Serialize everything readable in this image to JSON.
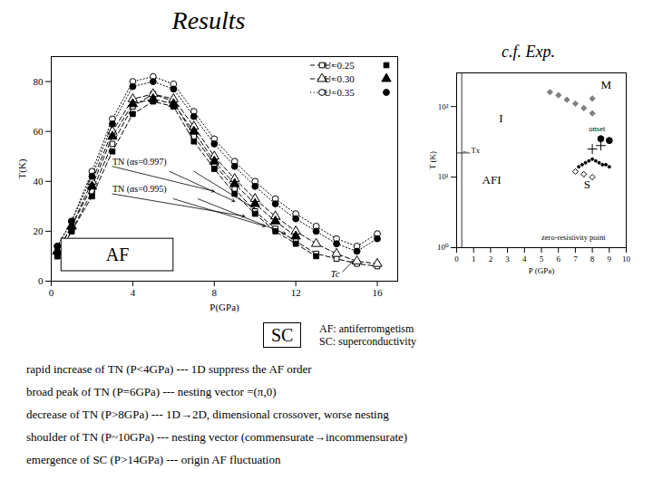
{
  "chart_data": [
    {
      "type": "line",
      "title": "Results",
      "xlabel": "P(GPa)",
      "ylabel": "T(K)",
      "xlim": [
        0,
        17
      ],
      "ylim": [
        0,
        90
      ],
      "xticks": [
        0,
        4,
        8,
        12,
        16
      ],
      "yticks": [
        0,
        20,
        40,
        60,
        80
      ],
      "grid": false,
      "legend": "upper right",
      "series": [
        {
          "name": "U=0.25",
          "marker": "square_open",
          "line_style": "dashed",
          "color": "#000000",
          "x": [
            0.3,
            1,
            2,
            3,
            4,
            5,
            6,
            7,
            8,
            9,
            10,
            11,
            12,
            13,
            14,
            15,
            16
          ],
          "values": [
            10,
            20,
            36,
            55,
            70,
            75,
            72,
            58,
            47,
            37,
            28,
            21,
            16,
            11,
            9,
            7,
            6
          ]
        },
        {
          "marker": "square",
          "line_style": "dashed",
          "color": "#000000",
          "x": [
            0.3,
            1,
            2,
            3,
            4,
            5,
            6,
            7,
            8,
            9,
            10,
            11,
            12,
            13
          ],
          "values": [
            10,
            20,
            34,
            52,
            67,
            72,
            70,
            56,
            45,
            35,
            27,
            20,
            15,
            10
          ]
        },
        {
          "name": "U=0.30",
          "marker": "triangle_open",
          "line_style": "dashed",
          "color": "#000000",
          "x": [
            0.3,
            1,
            2,
            3,
            4,
            5,
            6,
            7,
            8,
            9,
            10,
            11,
            12,
            13,
            14,
            15,
            16
          ],
          "values": [
            12,
            22,
            40,
            60,
            73,
            75,
            73,
            62,
            50,
            41,
            33,
            26,
            20,
            15,
            11,
            8,
            7
          ]
        },
        {
          "marker": "triangle",
          "line_style": "dashed",
          "color": "#000000",
          "x": [
            0.3,
            1,
            2,
            3,
            4,
            5,
            6,
            7,
            8,
            9,
            10,
            11,
            12
          ],
          "values": [
            12,
            22,
            38,
            58,
            71,
            73,
            71,
            60,
            48,
            39,
            31,
            24,
            18
          ]
        },
        {
          "name": "U=0.35",
          "marker": "circle_open",
          "line_style": "dotted",
          "color": "#000000",
          "x": [
            0.3,
            1,
            2,
            3,
            4,
            5,
            6,
            7,
            8,
            9,
            10,
            11,
            12,
            13,
            14,
            15,
            16
          ],
          "values": [
            14,
            24,
            44,
            65,
            80,
            82,
            79,
            68,
            57,
            48,
            40,
            33,
            27,
            22,
            17,
            14,
            19
          ]
        },
        {
          "marker": "circle",
          "line_style": "dotted",
          "color": "#000000",
          "x": [
            0.3,
            1,
            2,
            3,
            4,
            5,
            6,
            7,
            8,
            9,
            10,
            11,
            12,
            13,
            14,
            15,
            16
          ],
          "values": [
            14,
            24,
            42,
            63,
            78,
            80,
            77,
            66,
            55,
            46,
            38,
            31,
            25,
            20,
            15,
            12,
            17
          ]
        }
      ],
      "annotations": [
        {
          "text": "TN (αs=0.997)",
          "xy": [
            8.0,
            36
          ],
          "xytext": [
            3.0,
            46
          ]
        },
        {
          "text": "TN (αs=0.995)",
          "xy": [
            9.5,
            26
          ],
          "xytext": [
            3.0,
            35
          ]
        },
        {
          "text": "Tc",
          "xy": [
            14.8,
            8
          ],
          "xytext": [
            14.2,
            3
          ]
        }
      ],
      "arrows": [
        {
          "xy": [
            9.0,
            32
          ],
          "xytext": [
            5.8,
            44
          ]
        },
        {
          "xy": [
            10.0,
            29
          ],
          "xytext": [
            7.0,
            44
          ]
        },
        {
          "xy": [
            10.5,
            22
          ],
          "xytext": [
            6.0,
            33
          ]
        },
        {
          "xy": [
            11.5,
            19
          ],
          "xytext": [
            7.2,
            33
          ]
        }
      ],
      "boxes": [
        {
          "text": "AF",
          "x": [
            0.5,
            6.0
          ],
          "y": [
            4,
            17
          ]
        }
      ],
      "side_box": {
        "text": "SC",
        "note": "AF: antiferromgetism\nSC: superconductivity"
      },
      "caption": [
        "rapid increase of TN (P<4GPa) --- 1D suppress the AF order",
        "broad peak of TN (P=6GPa) --- nesting vector =(π,0)",
        "decrease of TN (P>8GPa) --- 1D→2D, dimensional crossover, worse nesting",
        "shoulder of TN (P~10GPa) --- nesting vector (commensurate→incommensurate)",
        "emergence of SC (P>14GPa) --- origin AF fluctuation"
      ]
    },
    {
      "type": "scatter",
      "title": "c.f. Exp.",
      "xlabel": "P (GPa)",
      "ylabel": "T (K)",
      "log": "y",
      "xlim": [
        0,
        10
      ],
      "ylim": [
        1,
        300
      ],
      "xticks": [
        0,
        1,
        2,
        3,
        4,
        5,
        6,
        7,
        8,
        9,
        10
      ],
      "yticks": [
        {
          "value": 1,
          "label": "10⁰"
        },
        {
          "value": 10,
          "label": "10¹"
        },
        {
          "value": 100,
          "label": "10²"
        }
      ],
      "series": [
        {
          "marker": "diamond",
          "color": "#808080",
          "x": [
            5.5,
            6,
            6.5,
            7,
            7.5,
            8,
            8.0
          ],
          "values": [
            160,
            145,
            125,
            110,
            95,
            80,
            130
          ]
        },
        {
          "marker": "diamond_open",
          "color": "#000000",
          "x": [
            7.0,
            7.5,
            8.0
          ],
          "values": [
            12,
            11,
            10
          ]
        },
        {
          "marker": "point",
          "color": "#000000",
          "x": [
            7.2,
            7.4,
            7.6,
            7.8,
            8.0,
            8.2,
            8.4,
            8.6,
            8.8,
            9.0
          ],
          "values": [
            14,
            15,
            16,
            17,
            18,
            17,
            16,
            15,
            15,
            14
          ]
        },
        {
          "marker": "circle",
          "color": "#000000",
          "x": [
            8.5,
            9.0
          ],
          "values": [
            35,
            33
          ]
        },
        {
          "marker": "plus",
          "color": "#000000",
          "x": [
            8.0,
            8.5
          ],
          "values": [
            25,
            28
          ]
        }
      ],
      "texts": [
        {
          "text": "I",
          "x": 2.5,
          "y": 60
        },
        {
          "text": "M",
          "x": 8.5,
          "y": 180
        },
        {
          "text": "AFI",
          "x": 1.5,
          "y": 8
        },
        {
          "text": "S",
          "x": 7.5,
          "y": 7
        },
        {
          "text": "onset",
          "x": 7.8,
          "y": 45
        },
        {
          "text": "zero-resistivity point",
          "x": 5.0,
          "y": 1.3
        },
        {
          "text": "← Tx",
          "x": 0.3,
          "y": 22
        }
      ],
      "lines": [
        {
          "x": 0.3
        },
        {
          "y": 22,
          "x": [
            0,
            0.8
          ]
        }
      ]
    }
  ]
}
